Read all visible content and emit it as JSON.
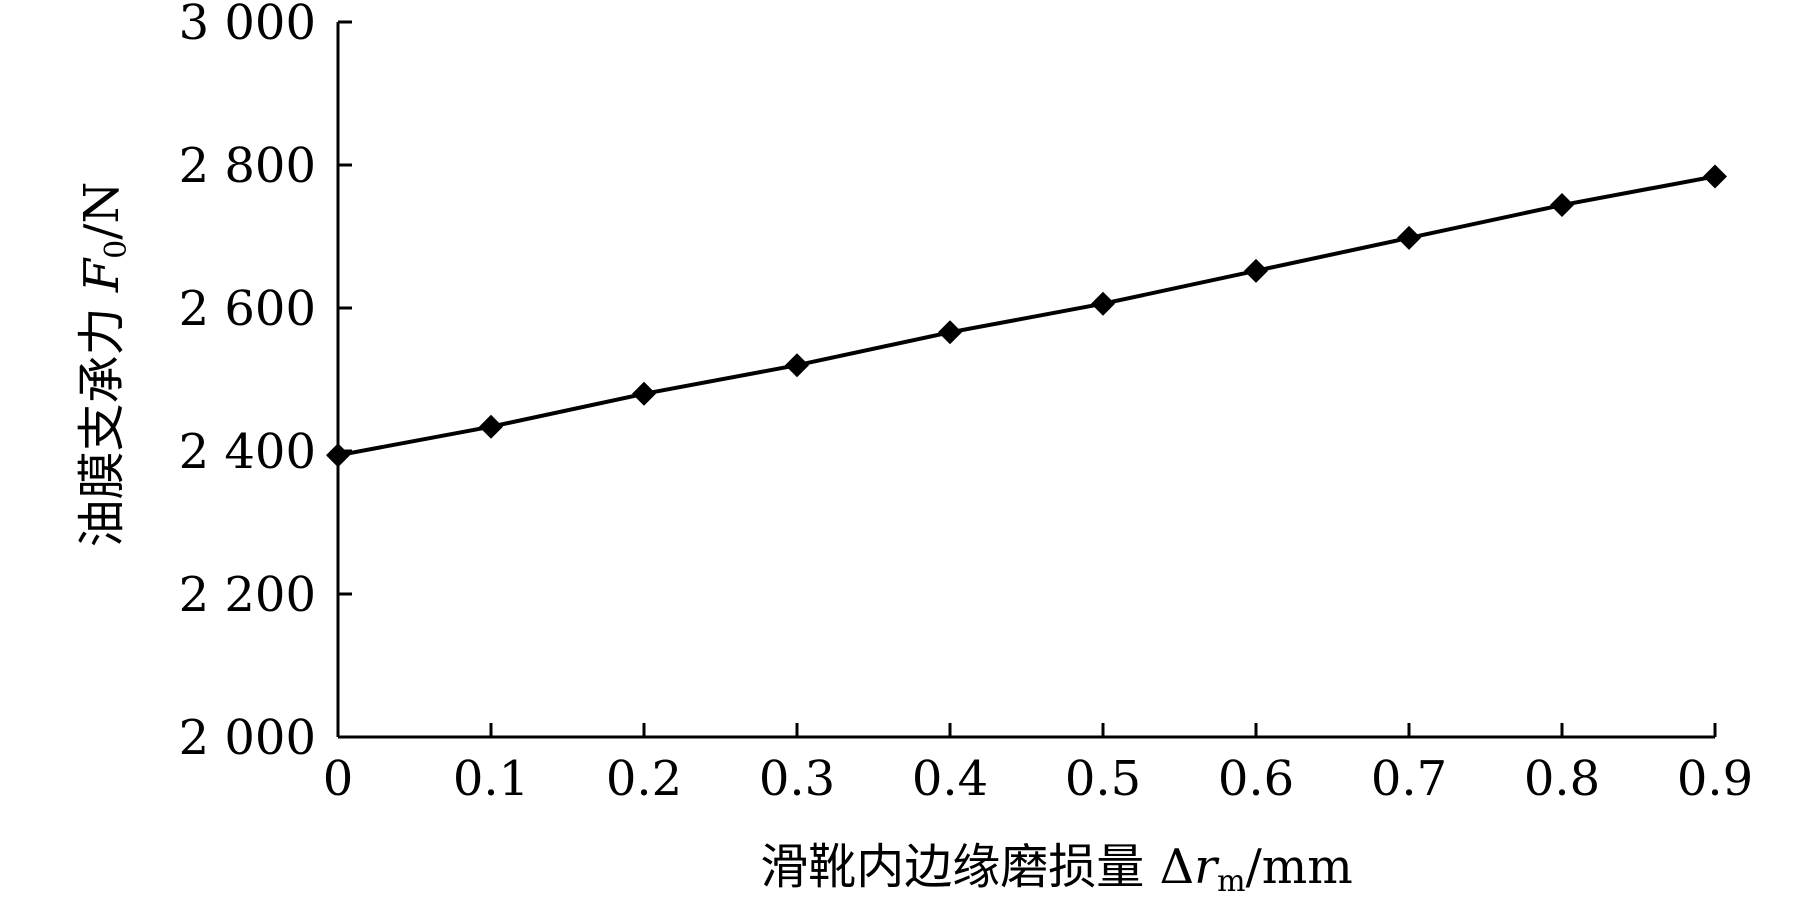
{
  "chart_data": {
    "type": "line",
    "title": "",
    "xlabel": "滑靴内边缘磨损量 Δr_m/mm",
    "ylabel": "油膜支承力 F_0/N",
    "xlabel_parts": {
      "prefix": "滑靴内边缘磨损量 ",
      "delta": "Δ",
      "symbol": "r",
      "sub": "m",
      "unit": "/mm"
    },
    "ylabel_parts": {
      "prefix": "油膜支承力 ",
      "symbol": "F",
      "sub": "0",
      "unit": "/N"
    },
    "xlim": [
      0,
      0.9
    ],
    "ylim": [
      2000,
      3000
    ],
    "x_ticks": [
      0,
      0.1,
      0.2,
      0.3,
      0.4,
      0.5,
      0.6,
      0.7,
      0.8,
      0.9
    ],
    "x_tick_labels": [
      "0",
      "0.1",
      "0.2",
      "0.3",
      "0.4",
      "0.5",
      "0.6",
      "0.7",
      "0.8",
      "0.9"
    ],
    "y_ticks": [
      2000,
      2200,
      2400,
      2600,
      2800,
      3000
    ],
    "y_tick_labels": [
      "2 000",
      "2 200",
      "2 400",
      "2 600",
      "2 800",
      "3 000"
    ],
    "grid": false,
    "legend": "none",
    "series": [
      {
        "marker": "diamond",
        "color": "#000000",
        "x": [
          0,
          0.1,
          0.2,
          0.3,
          0.4,
          0.5,
          0.6,
          0.7,
          0.8,
          0.9
        ],
        "y": [
          2394,
          2434,
          2480,
          2520,
          2566,
          2606,
          2652,
          2698,
          2744,
          2784
        ]
      }
    ]
  }
}
